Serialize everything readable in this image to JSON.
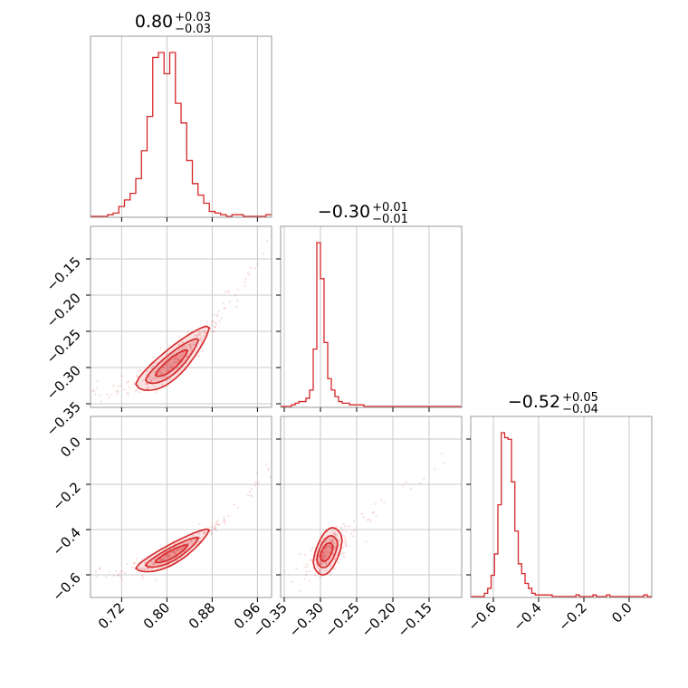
{
  "chart_data": {
    "type": "corner",
    "color": "#d62728",
    "grid": true,
    "panel_titles": [
      {
        "param": 0,
        "median": "0.80",
        "upper": "+0.03",
        "lower": "−0.03"
      },
      {
        "param": 1,
        "median": "−0.30",
        "upper": "+0.01",
        "lower": "−0.01"
      },
      {
        "param": 2,
        "median": "−0.52",
        "upper": "+0.05",
        "lower": "−0.04"
      }
    ],
    "parameters": [
      {
        "range": [
          0.665,
          0.985
        ],
        "ticks": [
          0.72,
          0.8,
          0.88,
          0.96
        ],
        "tick_labels": [
          "0.72",
          "0.80",
          "0.88",
          "0.96"
        ],
        "histogram": {
          "bins": [
            0.665,
            0.675,
            0.685,
            0.695,
            0.705,
            0.715,
            0.725,
            0.735,
            0.745,
            0.755,
            0.765,
            0.775,
            0.785,
            0.795,
            0.805,
            0.815,
            0.825,
            0.835,
            0.845,
            0.855,
            0.865,
            0.875,
            0.885,
            0.895,
            0.905,
            0.915,
            0.925,
            0.935,
            0.945,
            0.955,
            0.965,
            0.975,
            0.985
          ],
          "counts": [
            0,
            0,
            0,
            1,
            2,
            6,
            10,
            14,
            23,
            40,
            61,
            97,
            100,
            87,
            100,
            69,
            57,
            34,
            20,
            13,
            8,
            3,
            2,
            1,
            0,
            1,
            1,
            0,
            0,
            0,
            0,
            1
          ]
        }
      },
      {
        "range": [
          -0.355,
          -0.105
        ],
        "ticks": [
          -0.35,
          -0.3,
          -0.25,
          -0.2,
          -0.15
        ],
        "tick_labels": [
          "−0.35",
          "−0.30",
          "−0.25",
          "−0.20",
          "−0.15"
        ],
        "histogram": {
          "bins": [
            -0.355,
            -0.35,
            -0.345,
            -0.34,
            -0.335,
            -0.33,
            -0.325,
            -0.32,
            -0.315,
            -0.31,
            -0.305,
            -0.3,
            -0.295,
            -0.29,
            -0.285,
            -0.28,
            -0.275,
            -0.27,
            -0.265,
            -0.26,
            -0.255,
            -0.25,
            -0.245,
            -0.24,
            -0.235,
            -0.23,
            -0.225,
            -0.22,
            -0.215,
            -0.21,
            -0.205,
            -0.2,
            -0.195,
            -0.19,
            -0.185,
            -0.18,
            -0.175,
            -0.17,
            -0.165,
            -0.16,
            -0.155,
            -0.15,
            -0.145,
            -0.14,
            -0.135,
            -0.13,
            -0.125,
            -0.12,
            -0.115,
            -0.11,
            -0.105
          ],
          "counts": [
            0,
            0,
            0,
            1,
            2,
            3,
            3,
            5,
            10,
            35,
            100,
            78,
            39,
            17,
            10,
            6,
            3,
            2,
            2,
            1,
            1,
            1,
            1,
            0,
            0,
            0,
            0,
            0,
            0,
            0,
            0,
            0,
            0,
            0,
            0,
            0,
            0,
            0,
            0,
            0,
            0,
            0,
            0,
            0,
            0,
            0,
            0,
            0,
            0,
            0
          ]
        }
      },
      {
        "range": [
          -0.7,
          0.1
        ],
        "ticks": [
          -0.6,
          -0.4,
          -0.2,
          0.0
        ],
        "tick_labels": [
          "−0.6",
          "−0.4",
          "−0.2",
          "0.0"
        ],
        "histogram": {
          "bins": [
            -0.7,
            -0.685,
            -0.67,
            -0.655,
            -0.64,
            -0.625,
            -0.61,
            -0.595,
            -0.58,
            -0.565,
            -0.55,
            -0.535,
            -0.52,
            -0.505,
            -0.49,
            -0.475,
            -0.46,
            -0.445,
            -0.43,
            -0.415,
            -0.4,
            -0.385,
            -0.37,
            -0.355,
            -0.34,
            -0.325,
            -0.31,
            -0.295,
            -0.28,
            -0.265,
            -0.25,
            -0.235,
            -0.22,
            -0.205,
            -0.19,
            -0.175,
            -0.16,
            -0.145,
            -0.13,
            -0.115,
            -0.1,
            -0.085,
            -0.07,
            -0.055,
            -0.04,
            -0.025,
            -0.01,
            0.005,
            0.02,
            0.035,
            0.05,
            0.065,
            0.08,
            0.1
          ],
          "counts": [
            0,
            0,
            0,
            0,
            2,
            5,
            13,
            26,
            56,
            100,
            97,
            96,
            70,
            40,
            20,
            14,
            8,
            5,
            2,
            1,
            1,
            1,
            1,
            1,
            0,
            0,
            0,
            0,
            0,
            0,
            0,
            1,
            0,
            0,
            0,
            0,
            1,
            0,
            0,
            0,
            1,
            0,
            0,
            0,
            0,
            0,
            0,
            0,
            0,
            0,
            0,
            1,
            0
          ]
        }
      }
    ],
    "joint": [
      {
        "x_param": 0,
        "y_param": 1,
        "relation": "y = -0.30 + 0.55*(x-0.80) + 2.4*(x-0.80)^2",
        "core_x": [
          0.745,
          0.875
        ],
        "spread": 0.01
      },
      {
        "x_param": 0,
        "y_param": 2,
        "relation": "y = -0.52 + 1.20*(x-0.80) + 5.0*(x-0.80)^2",
        "core_x": [
          0.745,
          0.875
        ],
        "spread": 0.02
      },
      {
        "x_param": 1,
        "y_param": 2,
        "relation": "y = -0.52 + 2.4*(x+0.30)",
        "core_x": [
          -0.31,
          -0.27
        ],
        "spread": 0.04
      }
    ]
  }
}
